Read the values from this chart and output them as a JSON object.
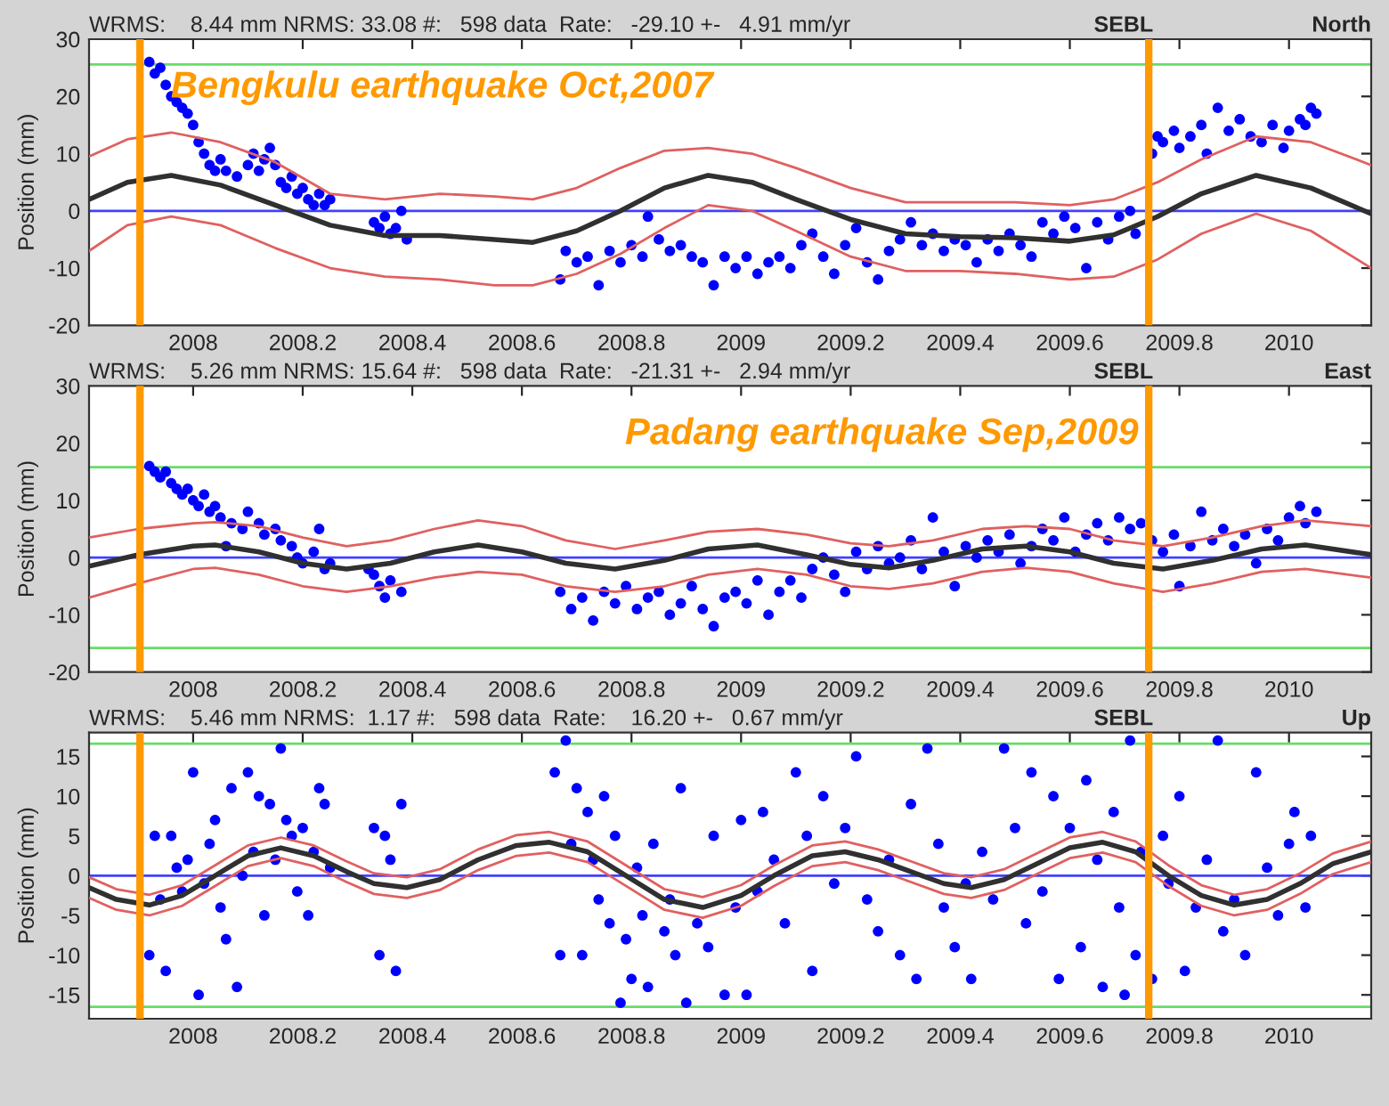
{
  "chart_data": [
    {
      "type": "scatter",
      "title": "WRMS:    8.44 mm NRMS: 33.08 #:   598 data  Rate:   -29.10 +-   4.91 mm/yr",
      "ylabel": "Position (mm)",
      "annotations": [
        "SEBL",
        "North"
      ],
      "xlim": [
        2007.81,
        2010.15
      ],
      "ylim": [
        -20,
        30
      ],
      "xticks": [
        2008,
        2008.2,
        2008.4,
        2008.6,
        2008.8,
        2009,
        2009.2,
        2009.4,
        2009.6,
        2009.8,
        2010
      ],
      "yticks": [
        -20,
        -10,
        0,
        10,
        20,
        30
      ],
      "grid": false,
      "legend": false,
      "series": [
        {
          "marker": "circle",
          "color": "#0000ff",
          "x": [
            2007.92,
            2007.93,
            2007.94,
            2007.95,
            2007.96,
            2007.97,
            2007.98,
            2007.99,
            2008.0,
            2008.01,
            2008.02,
            2008.03,
            2008.04,
            2008.05,
            2008.06,
            2008.08,
            2008.1,
            2008.11,
            2008.12,
            2008.13,
            2008.14,
            2008.15,
            2008.16,
            2008.17,
            2008.18,
            2008.19,
            2008.2,
            2008.21,
            2008.22,
            2008.23,
            2008.24,
            2008.25,
            2008.33,
            2008.34,
            2008.35,
            2008.36,
            2008.37,
            2008.38,
            2008.39,
            2008.67,
            2008.68,
            2008.7,
            2008.72,
            2008.74,
            2008.76,
            2008.78,
            2008.8,
            2008.82,
            2008.83,
            2008.85,
            2008.87,
            2008.89,
            2008.91,
            2008.93,
            2008.95,
            2008.97,
            2008.99,
            2009.01,
            2009.03,
            2009.05,
            2009.07,
            2009.09,
            2009.11,
            2009.13,
            2009.15,
            2009.17,
            2009.19,
            2009.21,
            2009.23,
            2009.25,
            2009.27,
            2009.29,
            2009.31,
            2009.33,
            2009.35,
            2009.37,
            2009.39,
            2009.41,
            2009.43,
            2009.45,
            2009.47,
            2009.49,
            2009.51,
            2009.53,
            2009.55,
            2009.57,
            2009.59,
            2009.61,
            2009.63,
            2009.65,
            2009.67,
            2009.69,
            2009.71,
            2009.72,
            2009.75,
            2009.76,
            2009.77,
            2009.79,
            2009.8,
            2009.82,
            2009.84,
            2009.85,
            2009.87,
            2009.89,
            2009.91,
            2009.93,
            2009.95,
            2009.97,
            2009.99,
            2010.0,
            2010.02,
            2010.03,
            2010.04,
            2010.05
          ],
          "values": [
            26,
            24,
            25,
            22,
            20,
            19,
            18,
            17,
            15,
            12,
            10,
            8,
            7,
            9,
            7,
            6,
            8,
            10,
            7,
            9,
            11,
            8,
            5,
            4,
            6,
            3,
            4,
            2,
            1,
            3,
            1,
            2,
            -2,
            -3,
            -1,
            -4,
            -3,
            0,
            -5,
            -12,
            -7,
            -9,
            -8,
            -13,
            -7,
            -9,
            -6,
            -8,
            -1,
            -5,
            -7,
            -6,
            -8,
            -9,
            -13,
            -8,
            -10,
            -8,
            -11,
            -9,
            -8,
            -10,
            -6,
            -4,
            -8,
            -11,
            -6,
            -3,
            -9,
            -12,
            -7,
            -5,
            -2,
            -6,
            -4,
            -7,
            -5,
            -6,
            -9,
            -5,
            -7,
            -4,
            -6,
            -8,
            -2,
            -4,
            -1,
            -3,
            -10,
            -2,
            -5,
            -1,
            0,
            -4,
            10,
            13,
            12,
            14,
            11,
            13,
            15,
            10,
            18,
            14,
            16,
            13,
            12,
            15,
            11,
            14,
            16,
            15,
            18,
            17
          ]
        },
        {
          "type": "line",
          "color": "#303030",
          "x": [
            2007.81,
            2007.88,
            2007.96,
            2008.05,
            2008.15,
            2008.25,
            2008.35,
            2008.45,
            2008.55,
            2008.62,
            2008.7,
            2008.78,
            2008.86,
            2008.94,
            2009.02,
            2009.1,
            2009.2,
            2009.3,
            2009.4,
            2009.5,
            2009.6,
            2009.68,
            2009.76,
            2009.84,
            2009.94,
            2010.04,
            2010.15
          ],
          "values": [
            2,
            5,
            6.2,
            4.5,
            1,
            -2.5,
            -4.3,
            -4.3,
            -5,
            -5.5,
            -3.5,
            0,
            4,
            6.2,
            5,
            2,
            -1.5,
            -4,
            -4.5,
            -4.7,
            -5.3,
            -4.2,
            -1,
            3,
            6.2,
            4,
            -0.5
          ]
        },
        {
          "type": "line",
          "color": "#e06060",
          "x": [
            2007.81,
            2007.88,
            2007.96,
            2008.05,
            2008.15,
            2008.25,
            2008.35,
            2008.45,
            2008.55,
            2008.62,
            2008.7,
            2008.78,
            2008.86,
            2008.94,
            2009.02,
            2009.1,
            2009.2,
            2009.3,
            2009.4,
            2009.5,
            2009.6,
            2009.68,
            2009.76,
            2009.84,
            2009.94,
            2010.04,
            2010.15
          ],
          "values": [
            9.5,
            12.5,
            13.7,
            12,
            8.5,
            3,
            2,
            3,
            2.5,
            2,
            4,
            7.5,
            10.5,
            11,
            10,
            7.5,
            4,
            1.5,
            1.5,
            1.5,
            1,
            2,
            5,
            9,
            13,
            12,
            8
          ]
        },
        {
          "type": "line",
          "color": "#e06060",
          "x": [
            2007.81,
            2007.88,
            2007.96,
            2008.05,
            2008.15,
            2008.25,
            2008.35,
            2008.45,
            2008.55,
            2008.62,
            2008.7,
            2008.78,
            2008.86,
            2008.94,
            2009.02,
            2009.1,
            2009.2,
            2009.3,
            2009.4,
            2009.5,
            2009.6,
            2009.68,
            2009.76,
            2009.84,
            2009.94,
            2010.04,
            2010.15
          ],
          "values": [
            -7,
            -2.5,
            -1,
            -2.5,
            -6.5,
            -10,
            -11.5,
            -12,
            -13,
            -13,
            -11,
            -7.5,
            -3,
            1,
            0,
            -3.5,
            -8,
            -10.5,
            -10.5,
            -11,
            -12,
            -11.5,
            -8.5,
            -4,
            -0.5,
            -3.5,
            -10
          ]
        }
      ],
      "ref_lines": [
        {
          "axis": "y",
          "value": 0,
          "color": "#4040ff"
        },
        {
          "axis": "y",
          "value": 25.6,
          "color": "#66dd66"
        },
        {
          "axis": "x",
          "value": 2007.903,
          "color": "#ff9900",
          "label": "Bengkulu earthquake Oct,2007"
        },
        {
          "axis": "x",
          "value": 2009.744,
          "color": "#ff9900"
        }
      ]
    },
    {
      "type": "scatter",
      "title": "WRMS:    5.26 mm NRMS: 15.64 #:   598 data  Rate:   -21.31 +-   2.94 mm/yr",
      "ylabel": "Position (mm)",
      "annotations": [
        "SEBL",
        "East"
      ],
      "xlim": [
        2007.81,
        2010.15
      ],
      "ylim": [
        -20,
        30
      ],
      "xticks": [
        2008,
        2008.2,
        2008.4,
        2008.6,
        2008.8,
        2009,
        2009.2,
        2009.4,
        2009.6,
        2009.8,
        2010
      ],
      "yticks": [
        -20,
        -10,
        0,
        10,
        20,
        30
      ],
      "grid": false,
      "legend": false,
      "series": [
        {
          "marker": "circle",
          "color": "#0000ff",
          "x": [
            2007.92,
            2007.93,
            2007.94,
            2007.95,
            2007.96,
            2007.97,
            2007.98,
            2007.99,
            2008.0,
            2008.01,
            2008.02,
            2008.03,
            2008.04,
            2008.05,
            2008.06,
            2008.07,
            2008.09,
            2008.1,
            2008.12,
            2008.13,
            2008.15,
            2008.16,
            2008.18,
            2008.19,
            2008.2,
            2008.22,
            2008.23,
            2008.24,
            2008.25,
            2008.32,
            2008.33,
            2008.34,
            2008.35,
            2008.36,
            2008.38,
            2008.67,
            2008.69,
            2008.71,
            2008.73,
            2008.75,
            2008.77,
            2008.79,
            2008.81,
            2008.83,
            2008.85,
            2008.87,
            2008.89,
            2008.91,
            2008.93,
            2008.95,
            2008.97,
            2008.99,
            2009.01,
            2009.03,
            2009.05,
            2009.07,
            2009.09,
            2009.11,
            2009.13,
            2009.15,
            2009.17,
            2009.19,
            2009.21,
            2009.23,
            2009.25,
            2009.27,
            2009.29,
            2009.31,
            2009.33,
            2009.35,
            2009.37,
            2009.39,
            2009.41,
            2009.43,
            2009.45,
            2009.47,
            2009.49,
            2009.51,
            2009.53,
            2009.55,
            2009.57,
            2009.59,
            2009.61,
            2009.63,
            2009.65,
            2009.67,
            2009.69,
            2009.71,
            2009.73,
            2009.75,
            2009.77,
            2009.79,
            2009.8,
            2009.82,
            2009.84,
            2009.86,
            2009.88,
            2009.9,
            2009.92,
            2009.94,
            2009.96,
            2009.98,
            2010.0,
            2010.02,
            2010.03,
            2010.05
          ],
          "values": [
            16,
            15,
            14,
            15,
            13,
            12,
            11,
            12,
            10,
            9,
            11,
            8,
            9,
            7,
            2,
            6,
            5,
            8,
            6,
            4,
            5,
            3,
            2,
            0,
            -1,
            1,
            5,
            -2,
            -1,
            -2,
            -3,
            -5,
            -7,
            -4,
            -6,
            -6,
            -9,
            -7,
            -11,
            -6,
            -8,
            -5,
            -9,
            -7,
            -6,
            -10,
            -8,
            -5,
            -9,
            -12,
            -7,
            -6,
            -8,
            -4,
            -10,
            -6,
            -4,
            -7,
            -2,
            0,
            -3,
            -6,
            1,
            -2,
            2,
            -1,
            0,
            3,
            -2,
            7,
            1,
            -5,
            2,
            0,
            3,
            1,
            4,
            -1,
            2,
            5,
            3,
            7,
            1,
            4,
            6,
            3,
            7,
            5,
            6,
            3,
            1,
            4,
            -5,
            2,
            8,
            3,
            5,
            2,
            4,
            -1,
            5,
            3,
            7,
            9,
            6,
            8
          ]
        },
        {
          "type": "line",
          "color": "#303030",
          "x": [
            2007.81,
            2007.9,
            2008.0,
            2008.04,
            2008.12,
            2008.2,
            2008.28,
            2008.36,
            2008.44,
            2008.52,
            2008.6,
            2008.68,
            2008.77,
            2008.86,
            2008.94,
            2009.03,
            2009.12,
            2009.2,
            2009.27,
            2009.35,
            2009.44,
            2009.52,
            2009.6,
            2009.68,
            2009.77,
            2009.86,
            2009.95,
            2010.03,
            2010.15
          ],
          "values": [
            -1.5,
            0.5,
            2,
            2.2,
            1,
            -1,
            -2,
            -1,
            1,
            2.2,
            1,
            -1,
            -2,
            -0.5,
            1.5,
            2.2,
            0.5,
            -1.2,
            -1.8,
            -0.5,
            1.5,
            2,
            1,
            -1,
            -2,
            -0.5,
            1.5,
            2.2,
            0.5
          ]
        },
        {
          "type": "line",
          "color": "#e06060",
          "x": [
            2007.81,
            2007.9,
            2008.0,
            2008.04,
            2008.12,
            2008.2,
            2008.28,
            2008.36,
            2008.44,
            2008.52,
            2008.6,
            2008.68,
            2008.77,
            2008.86,
            2008.94,
            2009.03,
            2009.12,
            2009.2,
            2009.27,
            2009.35,
            2009.44,
            2009.52,
            2009.6,
            2009.68,
            2009.77,
            2009.86,
            2009.95,
            2010.03,
            2010.15
          ],
          "values": [
            3.5,
            5,
            6,
            6.2,
            5.5,
            3.5,
            2,
            3,
            5,
            6.5,
            5.5,
            3,
            1.5,
            3,
            4.5,
            5,
            4,
            2.5,
            2,
            3,
            5,
            5.5,
            5,
            3,
            2,
            3.5,
            5.5,
            6.5,
            5.5
          ]
        },
        {
          "type": "line",
          "color": "#e06060",
          "x": [
            2007.81,
            2007.9,
            2008.0,
            2008.04,
            2008.12,
            2008.2,
            2008.28,
            2008.36,
            2008.44,
            2008.52,
            2008.6,
            2008.68,
            2008.77,
            2008.86,
            2008.94,
            2009.03,
            2009.12,
            2009.2,
            2009.27,
            2009.35,
            2009.44,
            2009.52,
            2009.6,
            2009.68,
            2009.77,
            2009.86,
            2009.95,
            2010.03,
            2010.15
          ],
          "values": [
            -7,
            -4.5,
            -2,
            -1.8,
            -3,
            -5,
            -6,
            -5,
            -3.5,
            -2.5,
            -3,
            -5,
            -6,
            -5,
            -3,
            -2,
            -3,
            -5,
            -5.5,
            -4.5,
            -2.5,
            -1.8,
            -2.5,
            -4.5,
            -6,
            -4.5,
            -2.5,
            -2,
            -3.5
          ]
        }
      ],
      "ref_lines": [
        {
          "axis": "y",
          "value": 0,
          "color": "#4040ff"
        },
        {
          "axis": "y",
          "value": 15.8,
          "color": "#66dd66"
        },
        {
          "axis": "y",
          "value": -15.8,
          "color": "#66dd66"
        },
        {
          "axis": "x",
          "value": 2007.903,
          "color": "#ff9900"
        },
        {
          "axis": "x",
          "value": 2009.744,
          "color": "#ff9900",
          "label": "Padang earthquake Sep,2009"
        }
      ]
    },
    {
      "type": "scatter",
      "title": "WRMS:    5.46 mm NRMS:  1.17 #:   598 data  Rate:    16.20 +-   0.67 mm/yr",
      "ylabel": "Position (mm)",
      "annotations": [
        "SEBL",
        "Up"
      ],
      "xlim": [
        2007.81,
        2010.15
      ],
      "ylim": [
        -18,
        18
      ],
      "xticks": [
        2008,
        2008.2,
        2008.4,
        2008.6,
        2008.8,
        2009,
        2009.2,
        2009.4,
        2009.6,
        2009.8,
        2010
      ],
      "yticks": [
        -15,
        -10,
        -5,
        0,
        5,
        10,
        15
      ],
      "grid": false,
      "legend": false,
      "series": [
        {
          "marker": "circle",
          "color": "#0000ff",
          "x": [
            2007.92,
            2007.93,
            2007.94,
            2007.95,
            2007.96,
            2007.97,
            2007.98,
            2007.99,
            2008.0,
            2008.01,
            2008.02,
            2008.03,
            2008.04,
            2008.05,
            2008.06,
            2008.07,
            2008.08,
            2008.09,
            2008.1,
            2008.11,
            2008.12,
            2008.13,
            2008.14,
            2008.15,
            2008.16,
            2008.17,
            2008.18,
            2008.19,
            2008.2,
            2008.21,
            2008.22,
            2008.23,
            2008.24,
            2008.25,
            2008.33,
            2008.34,
            2008.35,
            2008.36,
            2008.37,
            2008.38,
            2008.66,
            2008.67,
            2008.68,
            2008.69,
            2008.7,
            2008.71,
            2008.72,
            2008.73,
            2008.74,
            2008.75,
            2008.76,
            2008.77,
            2008.78,
            2008.79,
            2008.8,
            2008.81,
            2008.82,
            2008.83,
            2008.84,
            2008.86,
            2008.87,
            2008.88,
            2008.89,
            2008.9,
            2008.92,
            2008.94,
            2008.95,
            2008.97,
            2008.99,
            2009.0,
            2009.01,
            2009.03,
            2009.04,
            2009.06,
            2009.08,
            2009.1,
            2009.12,
            2009.13,
            2009.15,
            2009.17,
            2009.19,
            2009.21,
            2009.23,
            2009.25,
            2009.27,
            2009.29,
            2009.31,
            2009.32,
            2009.34,
            2009.36,
            2009.37,
            2009.39,
            2009.41,
            2009.42,
            2009.44,
            2009.46,
            2009.48,
            2009.5,
            2009.52,
            2009.53,
            2009.55,
            2009.57,
            2009.58,
            2009.6,
            2009.62,
            2009.63,
            2009.65,
            2009.66,
            2009.68,
            2009.69,
            2009.7,
            2009.71,
            2009.72,
            2009.73,
            2009.75,
            2009.77,
            2009.78,
            2009.8,
            2009.81,
            2009.83,
            2009.85,
            2009.87,
            2009.88,
            2009.9,
            2009.92,
            2009.94,
            2009.96,
            2009.98,
            2010.0,
            2010.01,
            2010.03,
            2010.04
          ],
          "values": [
            -10,
            5,
            -3,
            -12,
            5,
            1,
            -2,
            2,
            13,
            -15,
            -1,
            4,
            7,
            -4,
            -8,
            11,
            -14,
            0,
            13,
            3,
            10,
            -5,
            9,
            2,
            16,
            7,
            5,
            -2,
            6,
            -5,
            3,
            11,
            9,
            1,
            6,
            -10,
            5,
            2,
            -12,
            9,
            13,
            -10,
            17,
            4,
            11,
            -10,
            8,
            2,
            -3,
            10,
            -6,
            5,
            -16,
            -8,
            -13,
            1,
            -5,
            -14,
            4,
            -7,
            -3,
            -10,
            11,
            -16,
            -6,
            -9,
            5,
            -15,
            -4,
            7,
            -15,
            -2,
            8,
            2,
            -6,
            13,
            5,
            -12,
            10,
            -1,
            6,
            15,
            -3,
            -7,
            2,
            -10,
            9,
            -13,
            16,
            4,
            -4,
            -9,
            -1,
            -13,
            3,
            -3,
            16,
            6,
            -6,
            13,
            -2,
            10,
            -13,
            6,
            -9,
            12,
            2,
            -14,
            8,
            -4,
            -15,
            17,
            -10,
            3,
            -13,
            5,
            -1,
            10,
            -12,
            -4,
            2,
            17,
            -7,
            -3,
            -10,
            13,
            1,
            -5,
            4,
            8,
            -4,
            5
          ]
        },
        {
          "type": "line",
          "color": "#303030",
          "x": [
            2007.81,
            2007.86,
            2007.92,
            2007.98,
            2008.04,
            2008.1,
            2008.16,
            2008.22,
            2008.28,
            2008.33,
            2008.39,
            2008.45,
            2008.52,
            2008.59,
            2008.65,
            2008.72,
            2008.79,
            2008.86,
            2008.93,
            2009.0,
            2009.06,
            2009.13,
            2009.19,
            2009.25,
            2009.31,
            2009.37,
            2009.42,
            2009.48,
            2009.54,
            2009.6,
            2009.66,
            2009.72,
            2009.78,
            2009.84,
            2009.9,
            2009.96,
            2010.02,
            2010.08,
            2010.15
          ],
          "values": [
            -1.5,
            -3,
            -3.7,
            -2.5,
            0,
            2.5,
            3.5,
            2.5,
            0.5,
            -1,
            -1.5,
            -0.5,
            2,
            3.8,
            4.2,
            3,
            0,
            -3,
            -4,
            -2.5,
            0,
            2.5,
            3,
            2,
            0.5,
            -1,
            -1.5,
            -0.5,
            1.5,
            3.5,
            4.2,
            3,
            0,
            -2.5,
            -3.7,
            -3,
            -1,
            1.5,
            3
          ]
        },
        {
          "type": "line",
          "color": "#e06060",
          "x": [
            2007.81,
            2007.86,
            2007.92,
            2007.98,
            2008.04,
            2008.1,
            2008.16,
            2008.22,
            2008.28,
            2008.33,
            2008.39,
            2008.45,
            2008.52,
            2008.59,
            2008.65,
            2008.72,
            2008.79,
            2008.86,
            2008.93,
            2009.0,
            2009.06,
            2009.13,
            2009.19,
            2009.25,
            2009.31,
            2009.37,
            2009.42,
            2009.48,
            2009.54,
            2009.6,
            2009.66,
            2009.72,
            2009.78,
            2009.84,
            2009.9,
            2009.96,
            2010.02,
            2010.08,
            2010.15
          ],
          "values": [
            -0.2,
            -1.7,
            -2.4,
            -1.2,
            1.3,
            3.8,
            4.8,
            3.8,
            1.8,
            0.3,
            -0.2,
            0.8,
            3.3,
            5.1,
            5.5,
            4.3,
            1.3,
            -1.7,
            -2.7,
            -1.2,
            1.3,
            3.8,
            4.3,
            3.3,
            1.8,
            0.3,
            -0.2,
            0.8,
            2.8,
            4.8,
            5.5,
            4.3,
            1.3,
            -1.2,
            -2.4,
            -1.7,
            0.3,
            2.8,
            4.3
          ]
        },
        {
          "type": "line",
          "color": "#e06060",
          "x": [
            2007.81,
            2007.86,
            2007.92,
            2007.98,
            2008.04,
            2008.1,
            2008.16,
            2008.22,
            2008.28,
            2008.33,
            2008.39,
            2008.45,
            2008.52,
            2008.59,
            2008.65,
            2008.72,
            2008.79,
            2008.86,
            2008.93,
            2009.0,
            2009.06,
            2009.13,
            2009.19,
            2009.25,
            2009.31,
            2009.37,
            2009.42,
            2009.48,
            2009.54,
            2009.6,
            2009.66,
            2009.72,
            2009.78,
            2009.84,
            2009.9,
            2009.96,
            2010.02,
            2010.08,
            2010.15
          ],
          "values": [
            -2.8,
            -4.3,
            -5,
            -3.8,
            -1.3,
            1.2,
            2.2,
            1.2,
            -0.8,
            -2.3,
            -2.8,
            -1.8,
            0.7,
            2.5,
            2.9,
            1.7,
            -1.3,
            -4.3,
            -5.3,
            -3.8,
            -1.3,
            1.2,
            1.7,
            0.7,
            -0.8,
            -2.3,
            -2.8,
            -1.8,
            0.2,
            2.2,
            2.9,
            1.7,
            -1.3,
            -3.8,
            -5,
            -4.3,
            -2.3,
            0.2,
            1.7
          ]
        }
      ],
      "ref_lines": [
        {
          "axis": "y",
          "value": 0,
          "color": "#4040ff"
        },
        {
          "axis": "y",
          "value": 16.6,
          "color": "#66dd66"
        },
        {
          "axis": "y",
          "value": -16.5,
          "color": "#66dd66"
        },
        {
          "axis": "x",
          "value": 2007.903,
          "color": "#ff9900"
        },
        {
          "axis": "x",
          "value": 2009.744,
          "color": "#ff9900"
        }
      ]
    }
  ]
}
